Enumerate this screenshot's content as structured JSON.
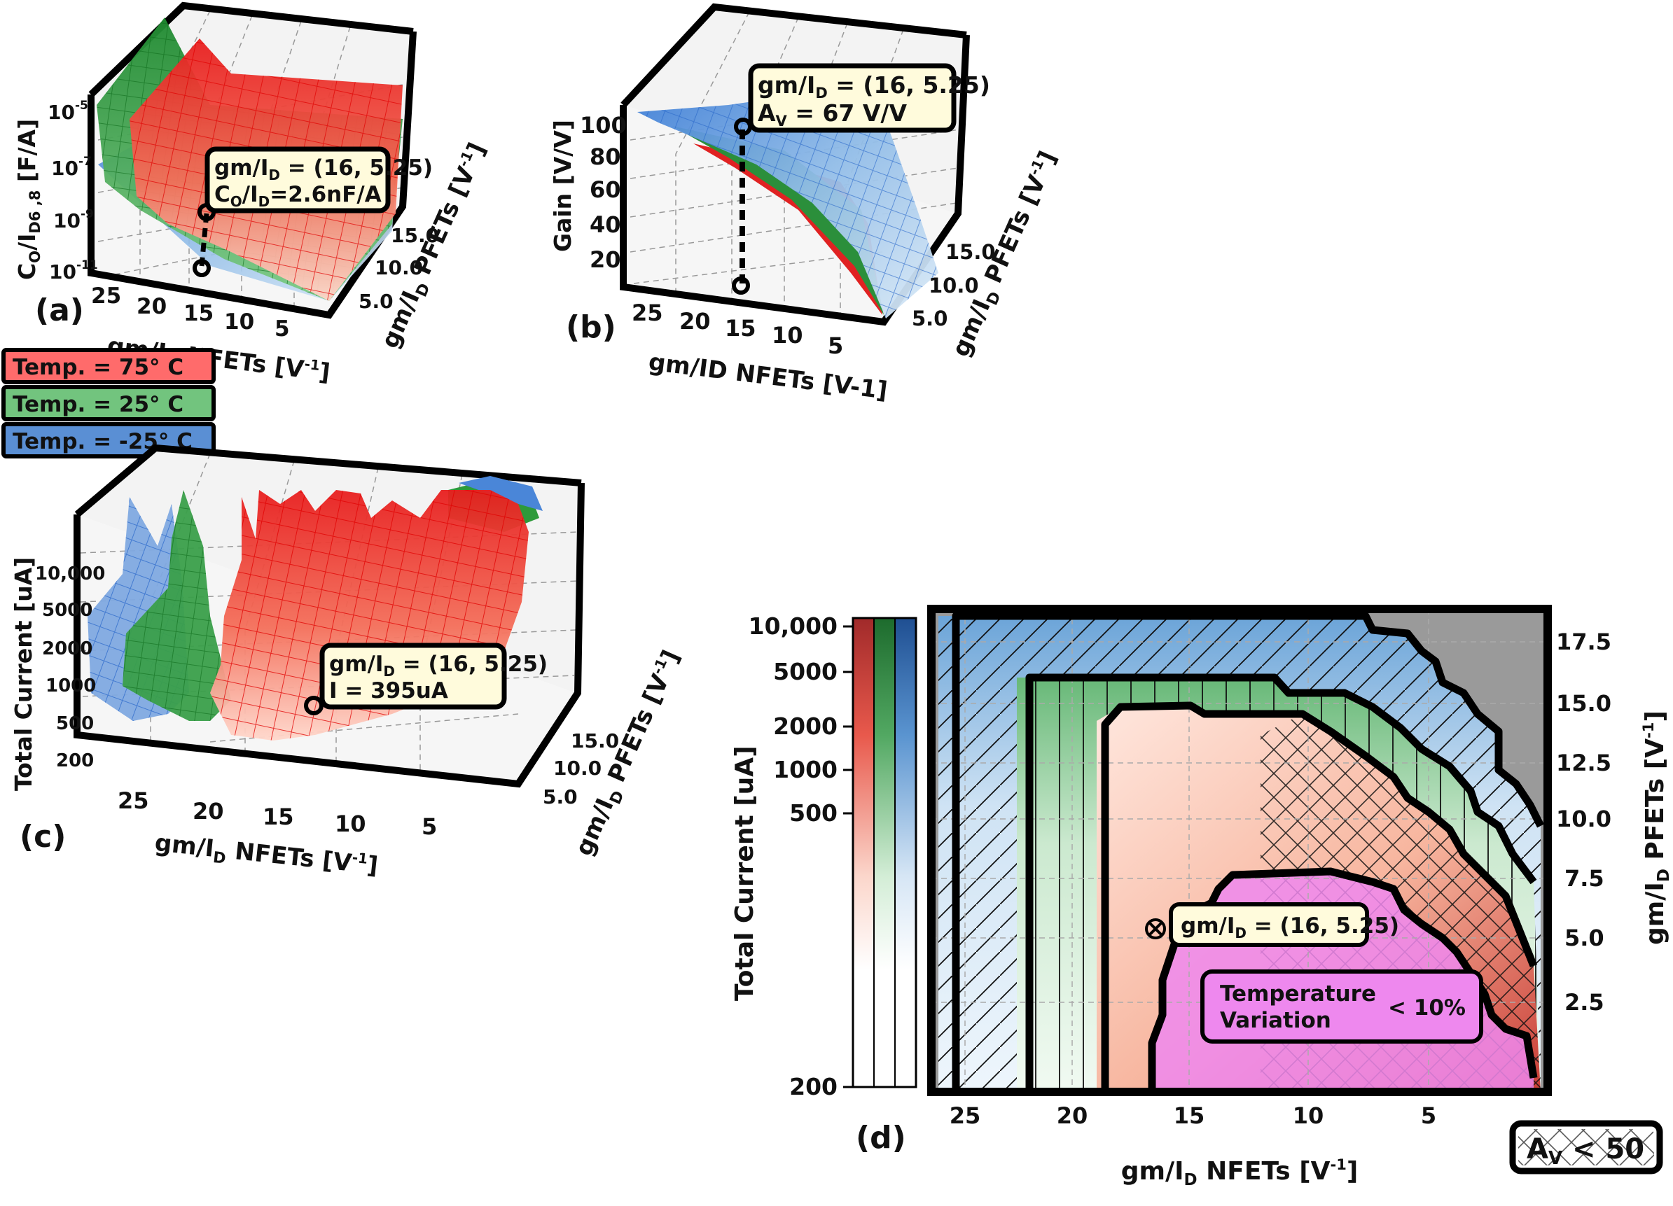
{
  "colors": {
    "hot": "#ff2a2a",
    "room": "#2e9a3a",
    "cold": "#4a86d8",
    "note_fill": "#fffbdc",
    "legend_hot": "#ff6b6b",
    "legend_room": "#72c47e",
    "legend_cold": "#5a8fd4",
    "region_fill": "#ee88ee",
    "masked": "#9a9a9a"
  },
  "legend": [
    {
      "label": "Temp. = 75° C",
      "color_key": "legend_hot"
    },
    {
      "label": "Temp. = 25° C",
      "color_key": "legend_room"
    },
    {
      "label": "Temp. = -25° C",
      "color_key": "legend_cold"
    }
  ],
  "chart_data": [
    {
      "panel": "(a)",
      "type": "surface3d",
      "x_label_main": "gm/I",
      "x_label_sub": "D",
      "x_label_rest": " NFETs [V",
      "x_label_sup": "-1",
      "x_label_end": "]",
      "x_ticks": [
        "25",
        "20",
        "15",
        "10",
        "5"
      ],
      "y_label_main": "gm/I",
      "y_label_sub": "D",
      "y_label_rest": " PFETs [V",
      "y_label_sup": "-1",
      "y_label_end": "]",
      "y_ticks": [
        "5.0",
        "10.0",
        "15.0"
      ],
      "z_label_main": "C",
      "z_label_sub1": "O",
      "z_label_mid": "/I",
      "z_label_sub2": "D6 ,8",
      "z_label_end": " [F/A]",
      "z_scale": "log",
      "z_ticks": [
        {
          "base": "10",
          "exp": "-5"
        },
        {
          "base": "10",
          "exp": "-7"
        },
        {
          "base": "10",
          "exp": "-9"
        },
        {
          "base": "10",
          "exp": "-11"
        }
      ],
      "series": [
        "75° C",
        "25° C",
        "-25° C"
      ],
      "annotation": {
        "point": [
          16,
          5.25
        ],
        "line1_pre": "gm/I",
        "line1_sub": "D",
        "line1_post": " = (16, 5.25)",
        "line2_pre": "C",
        "line2_sub": "O",
        "line2_mid": "/I",
        "line2_sub2": "D",
        "line2_post": "=2.6nF/A"
      }
    },
    {
      "panel": "(b)",
      "type": "surface3d",
      "x_label": "gm/ID NFETs [V-1]",
      "x_ticks": [
        "25",
        "20",
        "15",
        "10",
        "5"
      ],
      "y_label_main": "gm/I",
      "y_label_sub": "D",
      "y_label_rest": " PFETs [V",
      "y_label_sup": "-1",
      "y_label_end": "]",
      "y_ticks": [
        "5.0",
        "10.0",
        "15.0"
      ],
      "z_label": "Gain [V/V]",
      "z_ticks": [
        "100",
        "80",
        "60",
        "40",
        "20"
      ],
      "series": [
        "75° C",
        "25° C",
        "-25° C"
      ],
      "annotation": {
        "point": [
          16,
          5.25
        ],
        "line1_pre": "gm/I",
        "line1_sub": "D",
        "line1_post": " = (16, 5.25)",
        "line2_pre": "A",
        "line2_sub": "V",
        "line2_post": " = 67 V/V"
      }
    },
    {
      "panel": "(c)",
      "type": "surface3d",
      "x_label_main": "gm/I",
      "x_label_sub": "D",
      "x_label_rest": " NFETs [V",
      "x_label_sup": "-1",
      "x_label_end": "]",
      "x_ticks": [
        "25",
        "20",
        "15",
        "10",
        "5"
      ],
      "y_label_main": "gm/I",
      "y_label_sub": "D",
      "y_label_rest": " PFETs [V",
      "y_label_sup": "-1",
      "y_label_end": "]",
      "y_ticks": [
        "5.0",
        "10.0",
        "15.0"
      ],
      "z_label": "Total Current [uA]",
      "z_scale": "log",
      "z_ticks": [
        "10,000",
        "5000",
        "2000",
        "1000",
        "500",
        "200"
      ],
      "series": [
        "75° C",
        "25° C",
        "-25° C"
      ],
      "annotation": {
        "point": [
          16,
          5.25
        ],
        "line1_pre": "gm/I",
        "line1_sub": "D",
        "line1_post": " = (16, 5.25)",
        "line2": "I = 395uA"
      }
    },
    {
      "panel": "(d)",
      "type": "contour",
      "x_label_main": "gm/I",
      "x_label_sub": "D",
      "x_label_rest": " NFETs [V",
      "x_label_sup": "-1",
      "x_label_end": "]",
      "x_ticks": [
        "25",
        "20",
        "15",
        "10",
        "5"
      ],
      "y_label_main": "gm/I",
      "y_label_sub": "D",
      "y_label_rest": " PFETs [V",
      "y_label_sup": "-1",
      "y_label_end": "]",
      "y_ticks": [
        "17.5",
        "15.0",
        "12.5",
        "10.0",
        "7.5",
        "5.0",
        "2.5"
      ],
      "colorbar_label": "Total Current [uA]",
      "colorbar_ticks": [
        "10,000",
        "5000",
        "2000",
        "1000",
        "500",
        "200"
      ],
      "series": [
        "75° C",
        "25° C",
        "-25° C"
      ],
      "annotation": {
        "point": [
          16,
          5.25
        ],
        "line1_pre": "gm/I",
        "line1_sub": "D",
        "line1_post": " = (16, 5.25)"
      },
      "region_label_line1": "Temperature",
      "region_label_line2": "Variation",
      "region_label_right": "< 10%",
      "hatch_legend_pre": "A",
      "hatch_legend_sub": "V",
      "hatch_legend_post": " < 50"
    }
  ]
}
